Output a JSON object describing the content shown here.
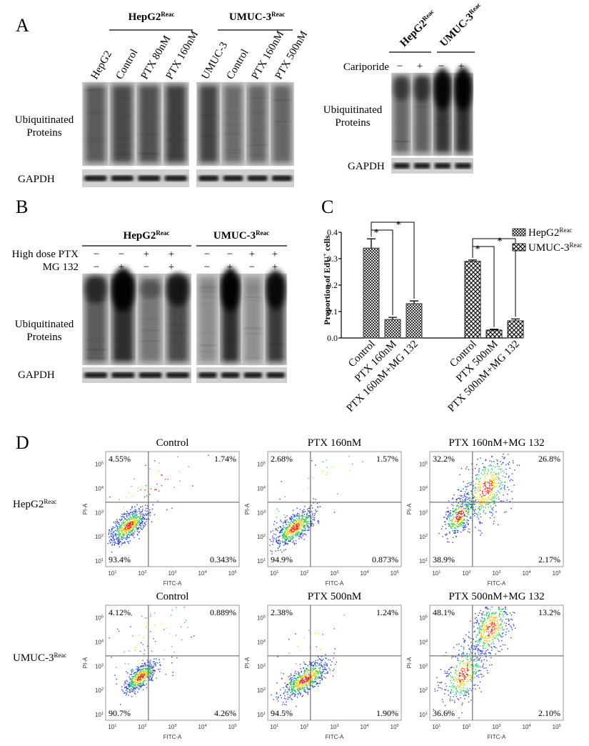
{
  "figure": {
    "panel_labels": [
      "A",
      "B",
      "C",
      "D"
    ],
    "panel_a": {
      "left": {
        "lanes": [
          "HepG2",
          "Control",
          "PTX 80nM",
          "PTX 160nM",
          "UMUC-3",
          "Control",
          "PTX 160nM",
          "PTX 500nM"
        ],
        "groups": [
          {
            "text": "HepG2",
            "sup": "Reac"
          },
          {
            "text": "UMUC-3",
            "sup": "Reac"
          }
        ],
        "blot_label": [
          "Ubiquitinated",
          "Proteins"
        ],
        "loading": "GAPDH"
      },
      "right": {
        "groups": [
          {
            "text": "HepG2",
            "sup": "Reac"
          },
          {
            "text": "UMUC-3",
            "sup": "Reac"
          }
        ],
        "treatment": "Cariporide",
        "signs": [
          "−",
          "+",
          "−",
          "+"
        ],
        "blot_label": [
          "Ubiquitinated",
          "Proteins"
        ],
        "loading": "GAPDH"
      }
    },
    "panel_b": {
      "groups": [
        {
          "text": "HepG2",
          "sup": "Reac"
        },
        {
          "text": "UMUC-3",
          "sup": "Reac"
        }
      ],
      "rows": [
        {
          "label": "High dose PTX",
          "signs": [
            "−",
            "−",
            "+",
            "+",
            "−",
            "−",
            "+",
            "+"
          ]
        },
        {
          "label": "MG 132",
          "signs": [
            "−",
            "+",
            "−",
            "+",
            "−",
            "+",
            "−",
            "+"
          ]
        }
      ],
      "blot_label": [
        "Ubiquitinated",
        "Proteins"
      ],
      "loading": "GAPDH"
    },
    "panel_d": {
      "x_label": "FITC-A",
      "y_label": "PI-A",
      "tick_base": "10",
      "x_tick_exps": [
        "1",
        "2",
        "3",
        "4",
        "5"
      ],
      "y_tick_exps": [
        "1",
        "2",
        "3",
        "4",
        "5"
      ],
      "rows": [
        {
          "label": {
            "text": "HepG2",
            "sup": "Reac"
          },
          "plots": [
            {
              "title": "Control",
              "quadrants": [
                "4.55%",
                "1.74%",
                "93.4%",
                "0.343%"
              ]
            },
            {
              "title": "PTX 160nM",
              "quadrants": [
                "2.68%",
                "1.57%",
                "94.9%",
                "0.873%"
              ]
            },
            {
              "title": "PTX 160nM+MG 132",
              "quadrants": [
                "32.2%",
                "26.8%",
                "38.9%",
                "2.17%"
              ]
            }
          ]
        },
        {
          "label": {
            "text": "UMUC-3",
            "sup": "Reac"
          },
          "plots": [
            {
              "title": "Control",
              "quadrants": [
                "4.12%",
                "0.889%",
                "90.7%",
                "4.26%"
              ]
            },
            {
              "title": "PTX 500nM",
              "quadrants": [
                "2.38%",
                "1.24%",
                "94.5%",
                "1.90%"
              ]
            },
            {
              "title": "PTX 500nM+MG 132",
              "quadrants": [
                "48.1%",
                "13.2%",
                "36.6%",
                "2.10%"
              ]
            }
          ]
        }
      ]
    }
  },
  "chart_data": {
    "type": "bar",
    "y_label": "Proportion of EdU",
    "y_label_sup": "+",
    "y_label_tail": " cells",
    "categories": [
      "Control",
      "PTX 160nM",
      "PTX 160nM+MG 132",
      "Control",
      "PTX 500nM",
      "PTX 500nM+MG 132"
    ],
    "series": [
      {
        "name": "HepG2",
        "name_sup": "Reac",
        "color": "#3a3a3a",
        "values": [
          0.34,
          0.07,
          0.13,
          null,
          null,
          null
        ],
        "errors": [
          0.035,
          0.008,
          0.01,
          null,
          null,
          null
        ]
      },
      {
        "name": "UMUC-3",
        "name_sup": "Reac",
        "color": "#1a1a1a",
        "values": [
          null,
          null,
          null,
          0.29,
          0.03,
          0.065
        ],
        "errors": [
          null,
          null,
          null,
          0.005,
          0.003,
          0.007
        ]
      }
    ],
    "ylim": [
      0,
      0.4
    ],
    "yticks": [
      {
        "value": 0,
        "label": "0.0"
      },
      0.1,
      0.2,
      0.3,
      0.4
    ],
    "annotations": [
      "*",
      "*",
      "*",
      "*"
    ],
    "legend": "right"
  }
}
